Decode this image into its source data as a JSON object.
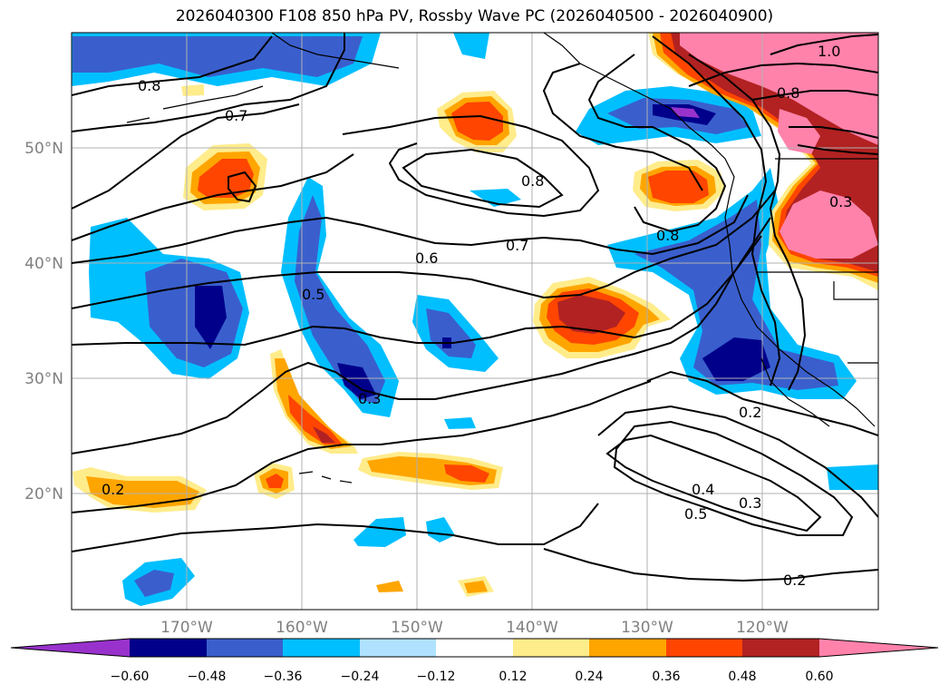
{
  "title": "2026040300 F108 850 hPa PV, Rossby Wave PC (2026040500 - 2026040900)",
  "lat_labels": [
    "50°N",
    "40°N",
    "30°N",
    "20°N"
  ],
  "lon_labels": [
    "170°W",
    "160°W",
    "150°W",
    "140°W",
    "130°W",
    "120°W"
  ],
  "colorbar": {
    "ticks": [
      "−0.60",
      "−0.48",
      "−0.36",
      "−0.24",
      "−0.12",
      "0.12",
      "0.24",
      "0.36",
      "0.48",
      "0.60"
    ],
    "colors": [
      "#9932CC",
      "#00008B",
      "#3A5FCD",
      "#00BFFF",
      "#B0E2FF",
      "#FFFFFF",
      "#FFEC8B",
      "#FFA500",
      "#FF4500",
      "#B22222",
      "#FF82AB"
    ]
  },
  "contour_labels": [
    "0.8",
    "0.7",
    "0.8",
    "0.7",
    "0.6",
    "0.5",
    "0.3",
    "0.8",
    "0.8",
    "0.2",
    "0.4",
    "0.5",
    "0.3",
    "0.2",
    "0.2",
    "1.0",
    "0.3"
  ]
}
